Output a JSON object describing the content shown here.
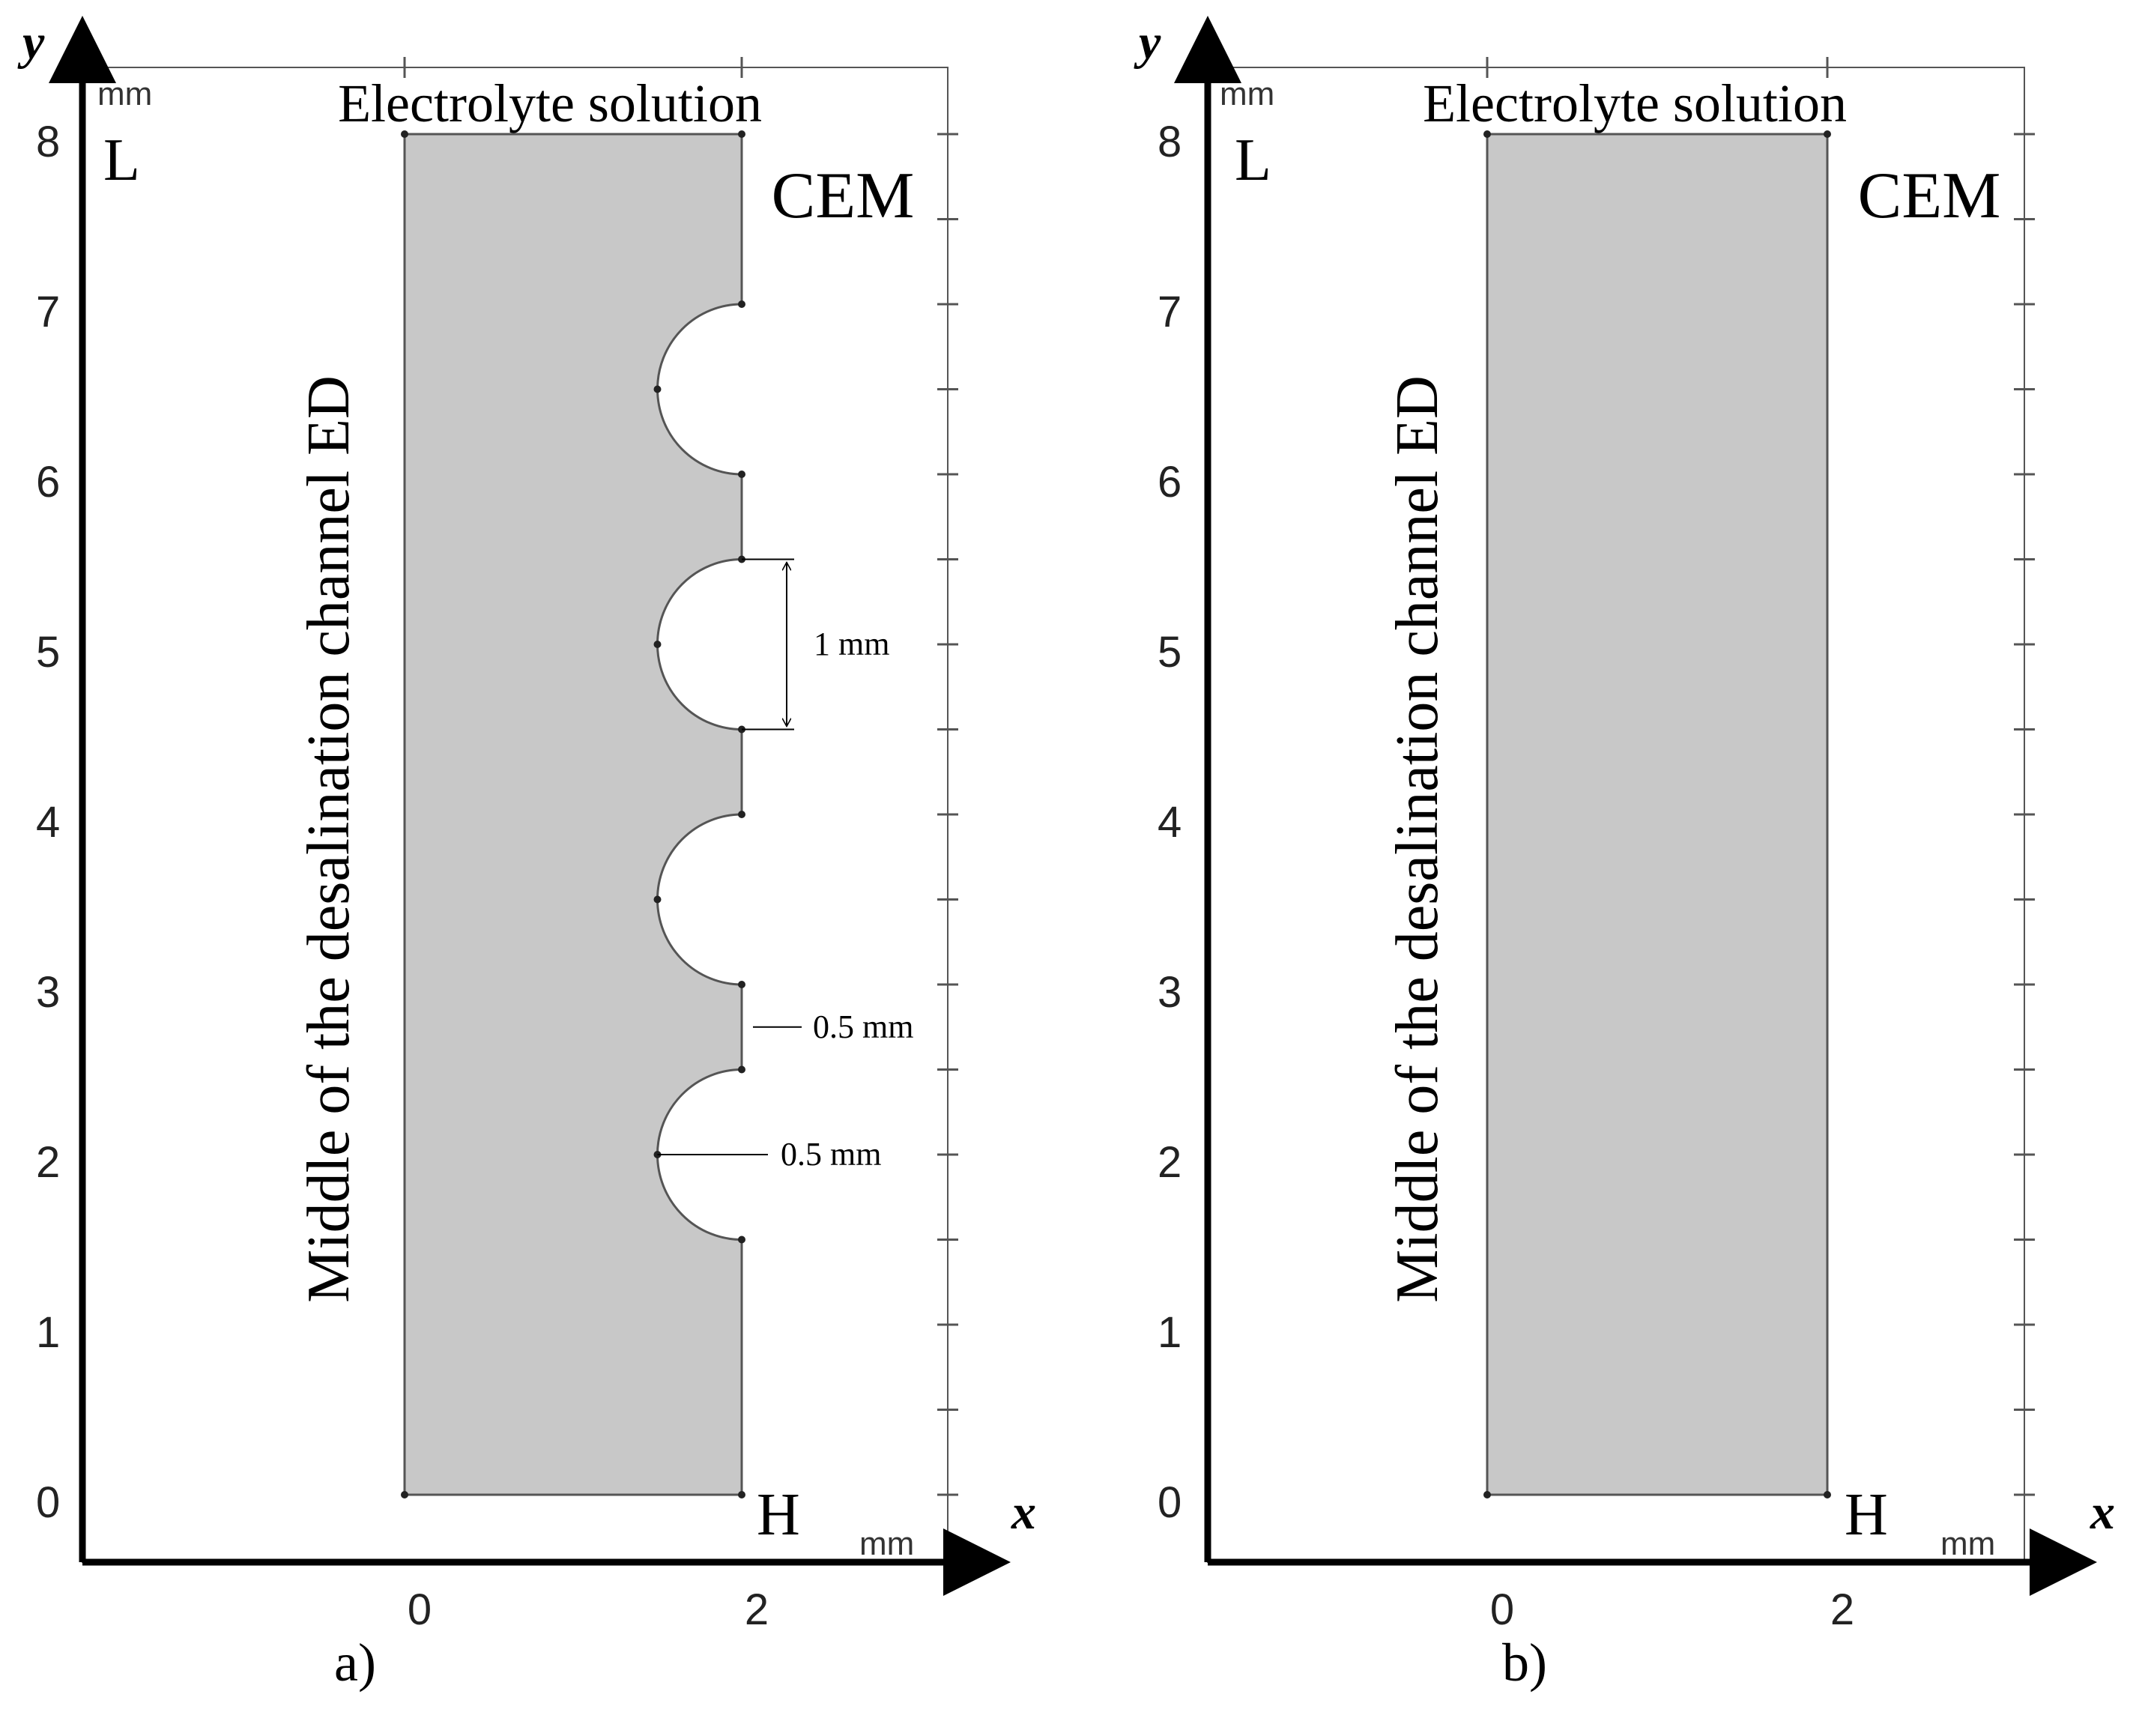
{
  "panels": [
    {
      "id": "a",
      "caption": "a)",
      "top_label": "Electrolyte solution",
      "side_label": "Middle of the desalination channel ED",
      "membrane_label": "CEM",
      "corner_top": "L",
      "corner_bottom": "H",
      "x_axis_label": "x",
      "y_axis_label": "y",
      "x_unit": "mm",
      "y_unit": "mm",
      "x_ticks": [
        "0",
        "2"
      ],
      "y_ticks": [
        "0",
        "1",
        "2",
        "3",
        "4",
        "5",
        "6",
        "7",
        "8"
      ],
      "domain": {
        "x_range_mm": [
          0,
          2
        ],
        "y_range_mm": [
          0,
          8
        ]
      },
      "indentations": [
        {
          "center_y_mm": 2.0,
          "radius_mm": 0.5
        },
        {
          "center_y_mm": 3.5,
          "radius_mm": 0.5
        },
        {
          "center_y_mm": 5.0,
          "radius_mm": 0.5
        },
        {
          "center_y_mm": 6.5,
          "radius_mm": 0.5
        }
      ],
      "dimensions": {
        "diameter": "1 mm",
        "gap": "0.5 mm",
        "radius": "0.5 mm"
      }
    },
    {
      "id": "b",
      "caption": "b)",
      "top_label": "Electrolyte solution",
      "side_label": "Middle of the desalination channel ED",
      "membrane_label": "CEM",
      "corner_top": "L",
      "corner_bottom": "H",
      "x_axis_label": "x",
      "y_axis_label": "y",
      "x_unit": "mm",
      "y_unit": "mm",
      "x_ticks": [
        "0",
        "2"
      ],
      "y_ticks": [
        "0",
        "1",
        "2",
        "3",
        "4",
        "5",
        "6",
        "7",
        "8"
      ],
      "domain": {
        "x_range_mm": [
          0,
          2
        ],
        "y_range_mm": [
          0,
          8
        ]
      },
      "indentations": []
    }
  ],
  "colors": {
    "domain_fill": "#c8c8c8",
    "line": "#000000",
    "frame": "#555555"
  }
}
